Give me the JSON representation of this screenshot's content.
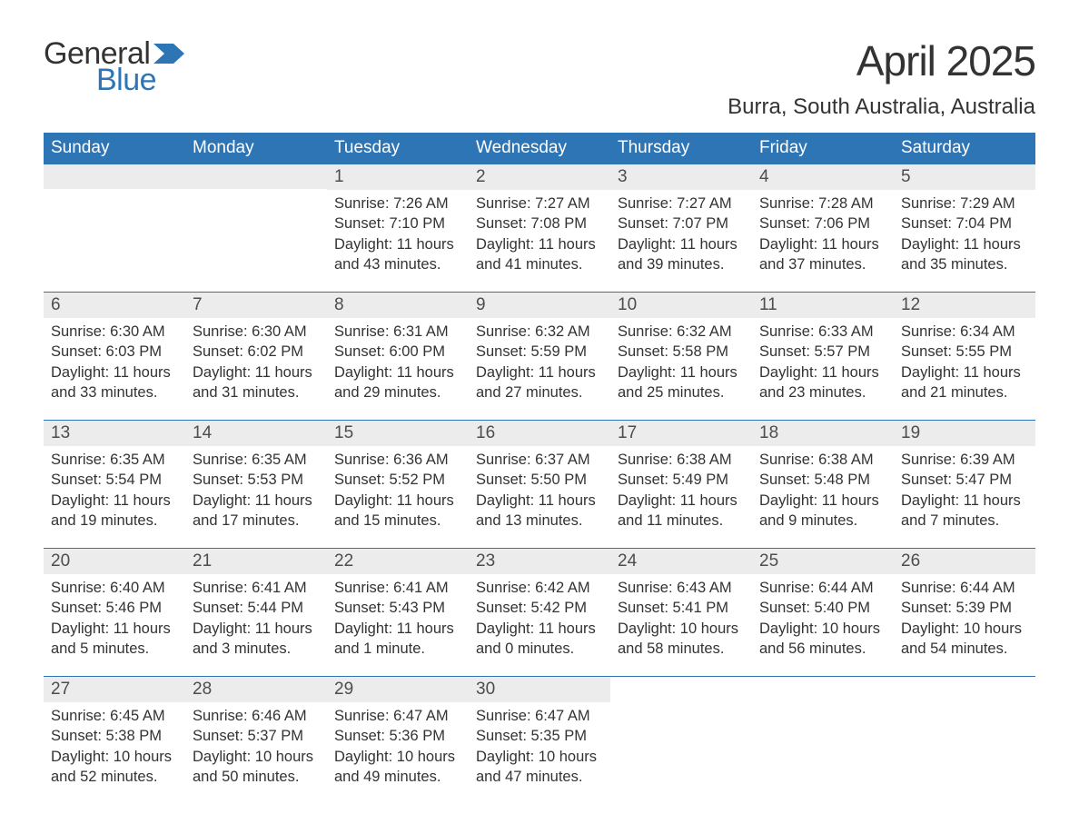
{
  "colors": {
    "header_bg": "#2e75b6",
    "header_text": "#ffffff",
    "day_number_bg": "#ececec",
    "day_number_text": "#4d4d4d",
    "body_text": "#333333",
    "week_divider": "#2e75b6",
    "logo_general": "#333333",
    "logo_blue": "#2e75b6",
    "logo_flag": "#2e75b6",
    "page_bg": "#ffffff"
  },
  "typography": {
    "month_title_fontsize": 46,
    "location_fontsize": 24,
    "header_cell_fontsize": 19,
    "day_number_fontsize": 19,
    "body_fontsize": 16.5,
    "font_family": "Arial, Helvetica, sans-serif"
  },
  "logo": {
    "general": "General",
    "blue": "Blue"
  },
  "title": {
    "month": "April 2025",
    "location": "Burra, South Australia, Australia"
  },
  "day_headers": [
    "Sunday",
    "Monday",
    "Tuesday",
    "Wednesday",
    "Thursday",
    "Friday",
    "Saturday"
  ],
  "weeks": [
    [
      {
        "n": "",
        "lines": []
      },
      {
        "n": "",
        "lines": []
      },
      {
        "n": "1",
        "lines": [
          "Sunrise: 7:26 AM",
          "Sunset: 7:10 PM",
          "Daylight: 11 hours and 43 minutes."
        ]
      },
      {
        "n": "2",
        "lines": [
          "Sunrise: 7:27 AM",
          "Sunset: 7:08 PM",
          "Daylight: 11 hours and 41 minutes."
        ]
      },
      {
        "n": "3",
        "lines": [
          "Sunrise: 7:27 AM",
          "Sunset: 7:07 PM",
          "Daylight: 11 hours and 39 minutes."
        ]
      },
      {
        "n": "4",
        "lines": [
          "Sunrise: 7:28 AM",
          "Sunset: 7:06 PM",
          "Daylight: 11 hours and 37 minutes."
        ]
      },
      {
        "n": "5",
        "lines": [
          "Sunrise: 7:29 AM",
          "Sunset: 7:04 PM",
          "Daylight: 11 hours and 35 minutes."
        ]
      }
    ],
    [
      {
        "n": "6",
        "lines": [
          "Sunrise: 6:30 AM",
          "Sunset: 6:03 PM",
          "Daylight: 11 hours and 33 minutes."
        ]
      },
      {
        "n": "7",
        "lines": [
          "Sunrise: 6:30 AM",
          "Sunset: 6:02 PM",
          "Daylight: 11 hours and 31 minutes."
        ]
      },
      {
        "n": "8",
        "lines": [
          "Sunrise: 6:31 AM",
          "Sunset: 6:00 PM",
          "Daylight: 11 hours and 29 minutes."
        ]
      },
      {
        "n": "9",
        "lines": [
          "Sunrise: 6:32 AM",
          "Sunset: 5:59 PM",
          "Daylight: 11 hours and 27 minutes."
        ]
      },
      {
        "n": "10",
        "lines": [
          "Sunrise: 6:32 AM",
          "Sunset: 5:58 PM",
          "Daylight: 11 hours and 25 minutes."
        ]
      },
      {
        "n": "11",
        "lines": [
          "Sunrise: 6:33 AM",
          "Sunset: 5:57 PM",
          "Daylight: 11 hours and 23 minutes."
        ]
      },
      {
        "n": "12",
        "lines": [
          "Sunrise: 6:34 AM",
          "Sunset: 5:55 PM",
          "Daylight: 11 hours and 21 minutes."
        ]
      }
    ],
    [
      {
        "n": "13",
        "lines": [
          "Sunrise: 6:35 AM",
          "Sunset: 5:54 PM",
          "Daylight: 11 hours and 19 minutes."
        ]
      },
      {
        "n": "14",
        "lines": [
          "Sunrise: 6:35 AM",
          "Sunset: 5:53 PM",
          "Daylight: 11 hours and 17 minutes."
        ]
      },
      {
        "n": "15",
        "lines": [
          "Sunrise: 6:36 AM",
          "Sunset: 5:52 PM",
          "Daylight: 11 hours and 15 minutes."
        ]
      },
      {
        "n": "16",
        "lines": [
          "Sunrise: 6:37 AM",
          "Sunset: 5:50 PM",
          "Daylight: 11 hours and 13 minutes."
        ]
      },
      {
        "n": "17",
        "lines": [
          "Sunrise: 6:38 AM",
          "Sunset: 5:49 PM",
          "Daylight: 11 hours and 11 minutes."
        ]
      },
      {
        "n": "18",
        "lines": [
          "Sunrise: 6:38 AM",
          "Sunset: 5:48 PM",
          "Daylight: 11 hours and 9 minutes."
        ]
      },
      {
        "n": "19",
        "lines": [
          "Sunrise: 6:39 AM",
          "Sunset: 5:47 PM",
          "Daylight: 11 hours and 7 minutes."
        ]
      }
    ],
    [
      {
        "n": "20",
        "lines": [
          "Sunrise: 6:40 AM",
          "Sunset: 5:46 PM",
          "Daylight: 11 hours and 5 minutes."
        ]
      },
      {
        "n": "21",
        "lines": [
          "Sunrise: 6:41 AM",
          "Sunset: 5:44 PM",
          "Daylight: 11 hours and 3 minutes."
        ]
      },
      {
        "n": "22",
        "lines": [
          "Sunrise: 6:41 AM",
          "Sunset: 5:43 PM",
          "Daylight: 11 hours and 1 minute."
        ]
      },
      {
        "n": "23",
        "lines": [
          "Sunrise: 6:42 AM",
          "Sunset: 5:42 PM",
          "Daylight: 11 hours and 0 minutes."
        ]
      },
      {
        "n": "24",
        "lines": [
          "Sunrise: 6:43 AM",
          "Sunset: 5:41 PM",
          "Daylight: 10 hours and 58 minutes."
        ]
      },
      {
        "n": "25",
        "lines": [
          "Sunrise: 6:44 AM",
          "Sunset: 5:40 PM",
          "Daylight: 10 hours and 56 minutes."
        ]
      },
      {
        "n": "26",
        "lines": [
          "Sunrise: 6:44 AM",
          "Sunset: 5:39 PM",
          "Daylight: 10 hours and 54 minutes."
        ]
      }
    ],
    [
      {
        "n": "27",
        "lines": [
          "Sunrise: 6:45 AM",
          "Sunset: 5:38 PM",
          "Daylight: 10 hours and 52 minutes."
        ]
      },
      {
        "n": "28",
        "lines": [
          "Sunrise: 6:46 AM",
          "Sunset: 5:37 PM",
          "Daylight: 10 hours and 50 minutes."
        ]
      },
      {
        "n": "29",
        "lines": [
          "Sunrise: 6:47 AM",
          "Sunset: 5:36 PM",
          "Daylight: 10 hours and 49 minutes."
        ]
      },
      {
        "n": "30",
        "lines": [
          "Sunrise: 6:47 AM",
          "Sunset: 5:35 PM",
          "Daylight: 10 hours and 47 minutes."
        ]
      },
      {
        "n": "",
        "lines": []
      },
      {
        "n": "",
        "lines": []
      },
      {
        "n": "",
        "lines": []
      }
    ]
  ]
}
